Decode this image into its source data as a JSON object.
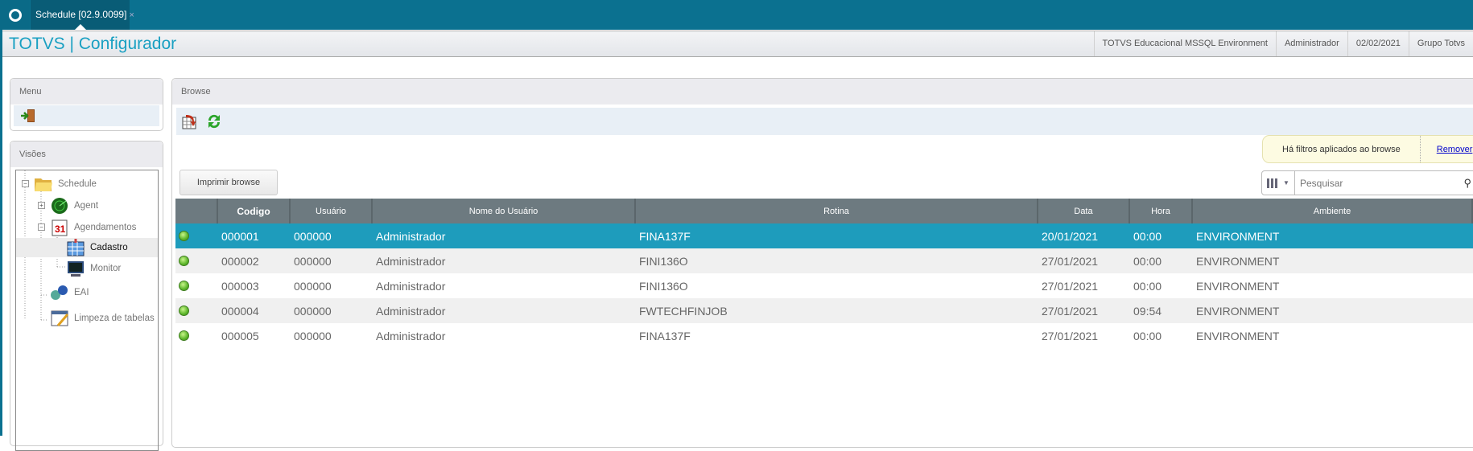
{
  "topbar": {
    "logo_icon": "totvs-logo-icon",
    "tab": {
      "label": "Schedule [02.9.0099]",
      "close": "×"
    }
  },
  "header": {
    "title": "TOTVS | Configurador",
    "environment": "TOTVS Educacional MSSQL Environment",
    "user": "Administrador",
    "date": "02/02/2021",
    "group": "Grupo Totvs"
  },
  "menu": {
    "title": "Menu",
    "exit_icon": "exit-door-icon"
  },
  "visoes": {
    "title": "Visões",
    "tree": [
      {
        "label": "Schedule",
        "icon": "folder-icon",
        "expander": "−"
      },
      {
        "label": "Agent",
        "icon": "radar-icon",
        "expander": "+"
      },
      {
        "label": "Agendamentos",
        "icon": "calendar-icon",
        "expander": "−"
      },
      {
        "label": "Cadastro",
        "icon": "calendar-grid-icon",
        "selected": true
      },
      {
        "label": "Monitor",
        "icon": "monitor-icon"
      },
      {
        "label": "EAI",
        "icon": "puzzle-icon"
      },
      {
        "label": "Limpeza de tabelas",
        "icon": "table-clean-icon"
      }
    ]
  },
  "browse": {
    "title": "Browse",
    "filter_text": "Há filtros aplicados ao browse",
    "filter_link": "Remover",
    "print_button": "Imprimir browse",
    "search_placeholder": "Pesquisar",
    "columns": [
      "",
      "Codigo",
      "Usuário",
      "Nome do Usuário",
      "Rotina",
      "Data",
      "Hora",
      "Ambiente"
    ],
    "rows": [
      {
        "status": "green",
        "codigo": "000001",
        "usuario": "000000",
        "nome": "Administrador",
        "rotina": "FINA137F",
        "data": "20/01/2021",
        "hora": "00:00",
        "ambiente": "ENVIRONMENT"
      },
      {
        "status": "green",
        "codigo": "000002",
        "usuario": "000000",
        "nome": "Administrador",
        "rotina": "FINI136O",
        "data": "27/01/2021",
        "hora": "00:00",
        "ambiente": "ENVIRONMENT"
      },
      {
        "status": "green",
        "codigo": "000003",
        "usuario": "000000",
        "nome": "Administrador",
        "rotina": "FINI136O",
        "data": "27/01/2021",
        "hora": "00:00",
        "ambiente": "ENVIRONMENT"
      },
      {
        "status": "green",
        "codigo": "000004",
        "usuario": "000000",
        "nome": "Administrador",
        "rotina": "FWTECHFINJOB",
        "data": "27/01/2021",
        "hora": "09:54",
        "ambiente": "ENVIRONMENT"
      },
      {
        "status": "green",
        "codigo": "000005",
        "usuario": "000000",
        "nome": "Administrador",
        "rotina": "FINA137F",
        "data": "27/01/2021",
        "hora": "00:00",
        "ambiente": "ENVIRONMENT"
      }
    ]
  },
  "colors": {
    "topbar": "#0b7190",
    "title": "#1aa0c2",
    "selected_row": "#1e9cbc",
    "header_row": "#6d7a80"
  }
}
